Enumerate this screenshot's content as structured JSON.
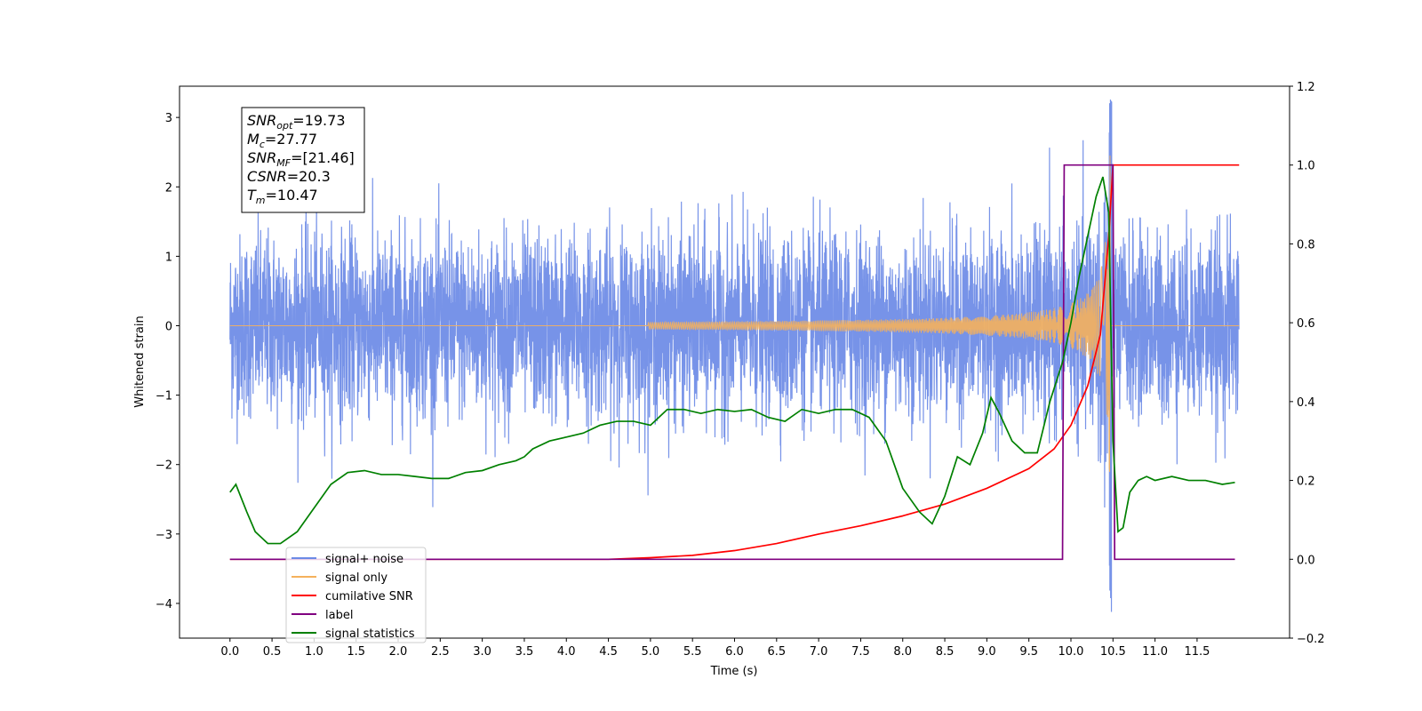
{
  "chart_data": {
    "type": "line",
    "xlabel": "Time (s)",
    "ylabel": "Whitened strain",
    "xlim": [
      -0.6,
      12.6
    ],
    "ylim": [
      -4.5,
      3.45
    ],
    "y2lim": [
      -0.2,
      1.2
    ],
    "x_ticks": [
      0.0,
      0.5,
      1.0,
      1.5,
      2.0,
      2.5,
      3.0,
      3.5,
      4.0,
      4.5,
      5.0,
      5.5,
      6.0,
      6.5,
      7.0,
      7.5,
      8.0,
      8.5,
      9.0,
      9.5,
      10.0,
      10.5,
      11.0,
      11.5
    ],
    "x_tick_labels": [
      "0.0",
      "0.5",
      "1.0",
      "1.5",
      "2.0",
      "2.5",
      "3.0",
      "3.5",
      "4.0",
      "4.5",
      "5.0",
      "5.5",
      "6.0",
      "6.5",
      "7.0",
      "7.5",
      "8.0",
      "8.5",
      "9.0",
      "9.5",
      "10.0",
      "10.5",
      "11.0",
      "11.5"
    ],
    "y_ticks": [
      3,
      2,
      1,
      0,
      -1,
      -2,
      -3,
      -4
    ],
    "y_tick_labels": [
      "3",
      "2",
      "1",
      "0",
      "−1",
      "−2",
      "−3",
      "−4"
    ],
    "y2_ticks": [
      1.2,
      1.0,
      0.8,
      0.6,
      0.4,
      0.2,
      0.0,
      -0.2
    ],
    "y2_tick_labels": [
      "1.2",
      "1.0",
      "0.8",
      "0.6",
      "0.4",
      "0.2",
      "0.0",
      "−0.2"
    ],
    "annotation": {
      "lines": [
        {
          "base": "SNR",
          "sub": "opt",
          "value": "=19.73"
        },
        {
          "base": "M",
          "sub": "c",
          "value": "=27.77"
        },
        {
          "base": "SNR",
          "sub": "MF",
          "value": "=[21.46]"
        },
        {
          "base": "CSNR",
          "sub": "",
          "value": "=20.3"
        },
        {
          "base": "T",
          "sub": "m",
          "value": "=10.47"
        }
      ]
    },
    "legend_position": "lower-left",
    "series": [
      {
        "name": "signal+ noise",
        "color": "#6b8ae6",
        "axis": "left",
        "x_start": 0.0,
        "x_end": 12.0,
        "approx_std": 0.65
      },
      {
        "name": "signal only",
        "color": "#f5b15c",
        "axis": "left",
        "merger_time": 10.47
      },
      {
        "name": "cumilative SNR",
        "color": "#ff0000",
        "axis": "right",
        "x": [
          0.0,
          4.5,
          5.0,
          5.5,
          6.0,
          6.5,
          7.0,
          7.5,
          8.0,
          8.5,
          9.0,
          9.5,
          9.8,
          10.0,
          10.2,
          10.35,
          10.45,
          10.5,
          12.0
        ],
        "y": [
          0.0,
          0.0,
          0.004,
          0.01,
          0.022,
          0.04,
          0.064,
          0.085,
          0.11,
          0.14,
          0.18,
          0.23,
          0.28,
          0.34,
          0.44,
          0.57,
          0.82,
          1.0,
          1.0
        ]
      },
      {
        "name": "label",
        "color": "#800080",
        "axis": "right",
        "x": [
          0.0,
          9.9,
          9.92,
          10.5,
          10.52,
          11.95
        ],
        "y": [
          0.0,
          0.0,
          1.0,
          1.0,
          0.0,
          0.0
        ]
      },
      {
        "name": "signal statistics",
        "color": "#008000",
        "axis": "right",
        "x": [
          0.0,
          0.07,
          0.2,
          0.3,
          0.45,
          0.6,
          0.8,
          1.0,
          1.2,
          1.4,
          1.6,
          1.8,
          2.0,
          2.2,
          2.4,
          2.6,
          2.8,
          3.0,
          3.2,
          3.4,
          3.5,
          3.6,
          3.8,
          4.0,
          4.2,
          4.4,
          4.6,
          4.8,
          5.0,
          5.2,
          5.4,
          5.6,
          5.8,
          6.0,
          6.2,
          6.4,
          6.6,
          6.8,
          7.0,
          7.2,
          7.4,
          7.6,
          7.8,
          8.0,
          8.2,
          8.35,
          8.5,
          8.65,
          8.8,
          8.95,
          9.05,
          9.15,
          9.3,
          9.45,
          9.6,
          9.75,
          9.9,
          10.0,
          10.1,
          10.2,
          10.3,
          10.38,
          10.45,
          10.5,
          10.56,
          10.62,
          10.7,
          10.8,
          10.9,
          11.0,
          11.2,
          11.4,
          11.6,
          11.8,
          11.95
        ],
        "y": [
          0.17,
          0.19,
          0.12,
          0.07,
          0.04,
          0.04,
          0.07,
          0.13,
          0.19,
          0.22,
          0.225,
          0.215,
          0.215,
          0.21,
          0.205,
          0.205,
          0.22,
          0.225,
          0.24,
          0.25,
          0.26,
          0.28,
          0.3,
          0.31,
          0.32,
          0.34,
          0.35,
          0.35,
          0.34,
          0.38,
          0.38,
          0.37,
          0.38,
          0.375,
          0.38,
          0.36,
          0.35,
          0.38,
          0.37,
          0.38,
          0.38,
          0.36,
          0.3,
          0.18,
          0.12,
          0.09,
          0.16,
          0.26,
          0.24,
          0.32,
          0.41,
          0.37,
          0.3,
          0.27,
          0.27,
          0.4,
          0.5,
          0.6,
          0.72,
          0.82,
          0.92,
          0.97,
          0.88,
          0.3,
          0.07,
          0.08,
          0.17,
          0.2,
          0.21,
          0.2,
          0.21,
          0.2,
          0.2,
          0.19,
          0.195
        ]
      }
    ]
  }
}
